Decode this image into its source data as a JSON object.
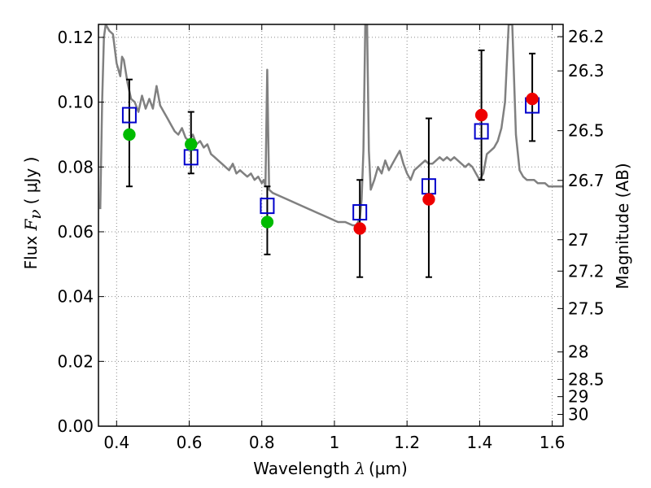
{
  "chart_data": {
    "type": "scatter",
    "title": "",
    "xlabel": "Wavelength  λ (μm)",
    "xlabel_parts": {
      "prefix": "Wavelength  ",
      "symbol": "λ",
      "units": "(μm)"
    },
    "ylabel": "Flux  Fν  ( μJy )",
    "ylabel_parts": {
      "prefix": "Flux  ",
      "symbol": "F",
      "subscript": "ν",
      "units": "( μJy )"
    },
    "y2label": "Magnitude (AB)",
    "xlim": [
      0.35,
      1.63
    ],
    "ylim": [
      0.0,
      0.124
    ],
    "grid": true,
    "x_ticks": [
      {
        "value": 0.4,
        "label": "0.4"
      },
      {
        "value": 0.6,
        "label": "0.6"
      },
      {
        "value": 0.8,
        "label": "0.8"
      },
      {
        "value": 1.0,
        "label": "1"
      },
      {
        "value": 1.2,
        "label": "1.2"
      },
      {
        "value": 1.4,
        "label": "1.4"
      },
      {
        "value": 1.6,
        "label": "1.6"
      }
    ],
    "y_ticks": [
      {
        "value": 0.0,
        "label": "0.00"
      },
      {
        "value": 0.02,
        "label": "0.02"
      },
      {
        "value": 0.04,
        "label": "0.04"
      },
      {
        "value": 0.06,
        "label": "0.06"
      },
      {
        "value": 0.08,
        "label": "0.08"
      },
      {
        "value": 0.1,
        "label": "0.10"
      },
      {
        "value": 0.12,
        "label": "0.12"
      }
    ],
    "y2_ticks": [
      {
        "value": 26.2,
        "label": "26.2"
      },
      {
        "value": 26.3,
        "label": "26.3"
      },
      {
        "value": 26.5,
        "label": "26.5"
      },
      {
        "value": 26.7,
        "label": "26.7"
      },
      {
        "value": 27,
        "label": "27"
      },
      {
        "value": 27.2,
        "label": "27.2"
      },
      {
        "value": 27.5,
        "label": "27.5"
      },
      {
        "value": 28,
        "label": "28"
      },
      {
        "value": 28.5,
        "label": "28.5"
      },
      {
        "value": 29,
        "label": "29"
      },
      {
        "value": 30,
        "label": "30"
      }
    ],
    "series": [
      {
        "kind": "line",
        "color": "#808080",
        "points": [
          [
            0.355,
            0.067
          ],
          [
            0.36,
            0.1
          ],
          [
            0.365,
            0.12
          ],
          [
            0.37,
            0.124
          ],
          [
            0.38,
            0.122
          ],
          [
            0.39,
            0.121
          ],
          [
            0.4,
            0.112
          ],
          [
            0.41,
            0.108
          ],
          [
            0.415,
            0.114
          ],
          [
            0.42,
            0.113
          ],
          [
            0.43,
            0.106
          ],
          [
            0.44,
            0.101
          ],
          [
            0.45,
            0.1
          ],
          [
            0.46,
            0.097
          ],
          [
            0.47,
            0.102
          ],
          [
            0.48,
            0.098
          ],
          [
            0.49,
            0.101
          ],
          [
            0.5,
            0.098
          ],
          [
            0.51,
            0.105
          ],
          [
            0.52,
            0.099
          ],
          [
            0.53,
            0.097
          ],
          [
            0.54,
            0.095
          ],
          [
            0.55,
            0.093
          ],
          [
            0.56,
            0.091
          ],
          [
            0.57,
            0.09
          ],
          [
            0.58,
            0.092
          ],
          [
            0.59,
            0.089
          ],
          [
            0.6,
            0.088
          ],
          [
            0.61,
            0.09
          ],
          [
            0.62,
            0.087
          ],
          [
            0.63,
            0.088
          ],
          [
            0.64,
            0.086
          ],
          [
            0.65,
            0.087
          ],
          [
            0.66,
            0.084
          ],
          [
            0.67,
            0.083
          ],
          [
            0.68,
            0.082
          ],
          [
            0.69,
            0.081
          ],
          [
            0.7,
            0.08
          ],
          [
            0.71,
            0.079
          ],
          [
            0.72,
            0.081
          ],
          [
            0.73,
            0.078
          ],
          [
            0.74,
            0.079
          ],
          [
            0.75,
            0.078
          ],
          [
            0.76,
            0.077
          ],
          [
            0.77,
            0.078
          ],
          [
            0.78,
            0.076
          ],
          [
            0.79,
            0.077
          ],
          [
            0.8,
            0.075
          ],
          [
            0.805,
            0.076
          ],
          [
            0.81,
            0.074
          ],
          [
            0.815,
            0.11
          ],
          [
            0.82,
            0.073
          ],
          [
            0.83,
            0.072
          ],
          [
            0.85,
            0.071
          ],
          [
            0.87,
            0.07
          ],
          [
            0.89,
            0.069
          ],
          [
            0.91,
            0.068
          ],
          [
            0.93,
            0.067
          ],
          [
            0.95,
            0.066
          ],
          [
            0.97,
            0.065
          ],
          [
            0.99,
            0.064
          ],
          [
            1.01,
            0.063
          ],
          [
            1.03,
            0.063
          ],
          [
            1.05,
            0.062
          ],
          [
            1.06,
            0.062
          ],
          [
            1.07,
            0.064
          ],
          [
            1.075,
            0.07
          ],
          [
            1.08,
            0.085
          ],
          [
            1.085,
            0.124
          ],
          [
            1.09,
            0.124
          ],
          [
            1.095,
            0.085
          ],
          [
            1.1,
            0.073
          ],
          [
            1.11,
            0.076
          ],
          [
            1.12,
            0.08
          ],
          [
            1.13,
            0.078
          ],
          [
            1.14,
            0.082
          ],
          [
            1.15,
            0.079
          ],
          [
            1.16,
            0.081
          ],
          [
            1.17,
            0.083
          ],
          [
            1.18,
            0.085
          ],
          [
            1.19,
            0.081
          ],
          [
            1.2,
            0.078
          ],
          [
            1.21,
            0.076
          ],
          [
            1.22,
            0.079
          ],
          [
            1.23,
            0.08
          ],
          [
            1.24,
            0.081
          ],
          [
            1.25,
            0.082
          ],
          [
            1.26,
            0.081
          ],
          [
            1.27,
            0.081
          ],
          [
            1.28,
            0.082
          ],
          [
            1.29,
            0.083
          ],
          [
            1.3,
            0.082
          ],
          [
            1.31,
            0.083
          ],
          [
            1.32,
            0.082
          ],
          [
            1.33,
            0.083
          ],
          [
            1.34,
            0.082
          ],
          [
            1.35,
            0.081
          ],
          [
            1.36,
            0.08
          ],
          [
            1.37,
            0.081
          ],
          [
            1.38,
            0.08
          ],
          [
            1.39,
            0.078
          ],
          [
            1.4,
            0.076
          ],
          [
            1.41,
            0.078
          ],
          [
            1.42,
            0.084
          ],
          [
            1.43,
            0.085
          ],
          [
            1.44,
            0.086
          ],
          [
            1.45,
            0.088
          ],
          [
            1.46,
            0.092
          ],
          [
            1.47,
            0.1
          ],
          [
            1.48,
            0.124
          ],
          [
            1.49,
            0.124
          ],
          [
            1.5,
            0.09
          ],
          [
            1.51,
            0.079
          ],
          [
            1.52,
            0.077
          ],
          [
            1.53,
            0.076
          ],
          [
            1.54,
            0.076
          ],
          [
            1.55,
            0.076
          ],
          [
            1.56,
            0.075
          ],
          [
            1.57,
            0.075
          ],
          [
            1.58,
            0.075
          ],
          [
            1.59,
            0.074
          ],
          [
            1.6,
            0.074
          ],
          [
            1.61,
            0.074
          ],
          [
            1.62,
            0.074
          ],
          [
            1.63,
            0.074
          ]
        ]
      },
      {
        "kind": "errorbar",
        "color": "#000000",
        "points": [
          {
            "x": 0.435,
            "low": 0.074,
            "high": 0.107
          },
          {
            "x": 0.605,
            "low": 0.078,
            "high": 0.097
          },
          {
            "x": 0.815,
            "low": 0.053,
            "high": 0.074
          },
          {
            "x": 1.07,
            "low": 0.046,
            "high": 0.076
          },
          {
            "x": 1.26,
            "low": 0.046,
            "high": 0.095
          },
          {
            "x": 1.405,
            "low": 0.076,
            "high": 0.116
          },
          {
            "x": 1.545,
            "low": 0.088,
            "high": 0.115
          }
        ]
      },
      {
        "kind": "scatter",
        "marker": "open-square",
        "color": "#0000cc",
        "points": [
          [
            0.435,
            0.096
          ],
          [
            0.605,
            0.083
          ],
          [
            0.815,
            0.068
          ],
          [
            1.07,
            0.066
          ],
          [
            1.26,
            0.074
          ],
          [
            1.405,
            0.091
          ],
          [
            1.545,
            0.099
          ]
        ]
      },
      {
        "kind": "scatter",
        "marker": "filled-circle",
        "color": "#00bb00",
        "points": [
          [
            0.435,
            0.09
          ],
          [
            0.605,
            0.087
          ],
          [
            0.815,
            0.063
          ]
        ]
      },
      {
        "kind": "scatter",
        "marker": "filled-circle",
        "color": "#ee0000",
        "points": [
          [
            1.07,
            0.061
          ],
          [
            1.26,
            0.07
          ],
          [
            1.405,
            0.096
          ],
          [
            1.545,
            0.101
          ]
        ]
      }
    ]
  }
}
